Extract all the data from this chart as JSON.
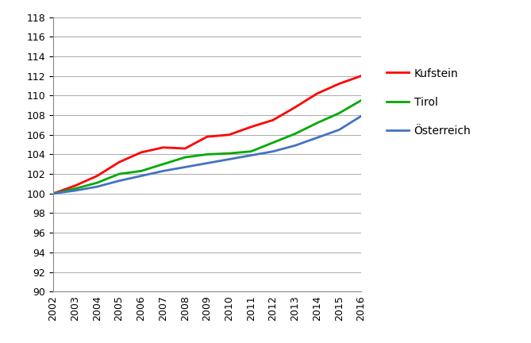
{
  "years": [
    2002,
    2003,
    2004,
    2005,
    2006,
    2007,
    2008,
    2009,
    2010,
    2011,
    2012,
    2013,
    2014,
    2015,
    2016
  ],
  "kufstein": [
    100.0,
    100.8,
    101.8,
    103.2,
    104.2,
    104.7,
    104.6,
    105.8,
    106.0,
    106.8,
    107.5,
    108.8,
    110.2,
    111.2,
    112.0
  ],
  "tirol": [
    100.0,
    100.5,
    101.1,
    102.0,
    102.3,
    103.0,
    103.7,
    104.0,
    104.1,
    104.3,
    105.2,
    106.1,
    107.2,
    108.2,
    109.5
  ],
  "oesterreich": [
    100.0,
    100.3,
    100.7,
    101.3,
    101.8,
    102.3,
    102.7,
    103.1,
    103.5,
    103.9,
    104.3,
    104.9,
    105.7,
    106.5,
    107.9
  ],
  "kufstein_color": "#ff0000",
  "tirol_color": "#00aa00",
  "oesterreich_color": "#4472c4",
  "kufstein_label": "Kufstein",
  "tirol_label": "Tirol",
  "oesterreich_label": "Österreich",
  "ylim": [
    90,
    118
  ],
  "ytick_step": 2,
  "background_color": "#ffffff",
  "grid_color": "#aaaaaa",
  "line_width": 2.0,
  "legend_fontsize": 10,
  "tick_fontsize": 9
}
